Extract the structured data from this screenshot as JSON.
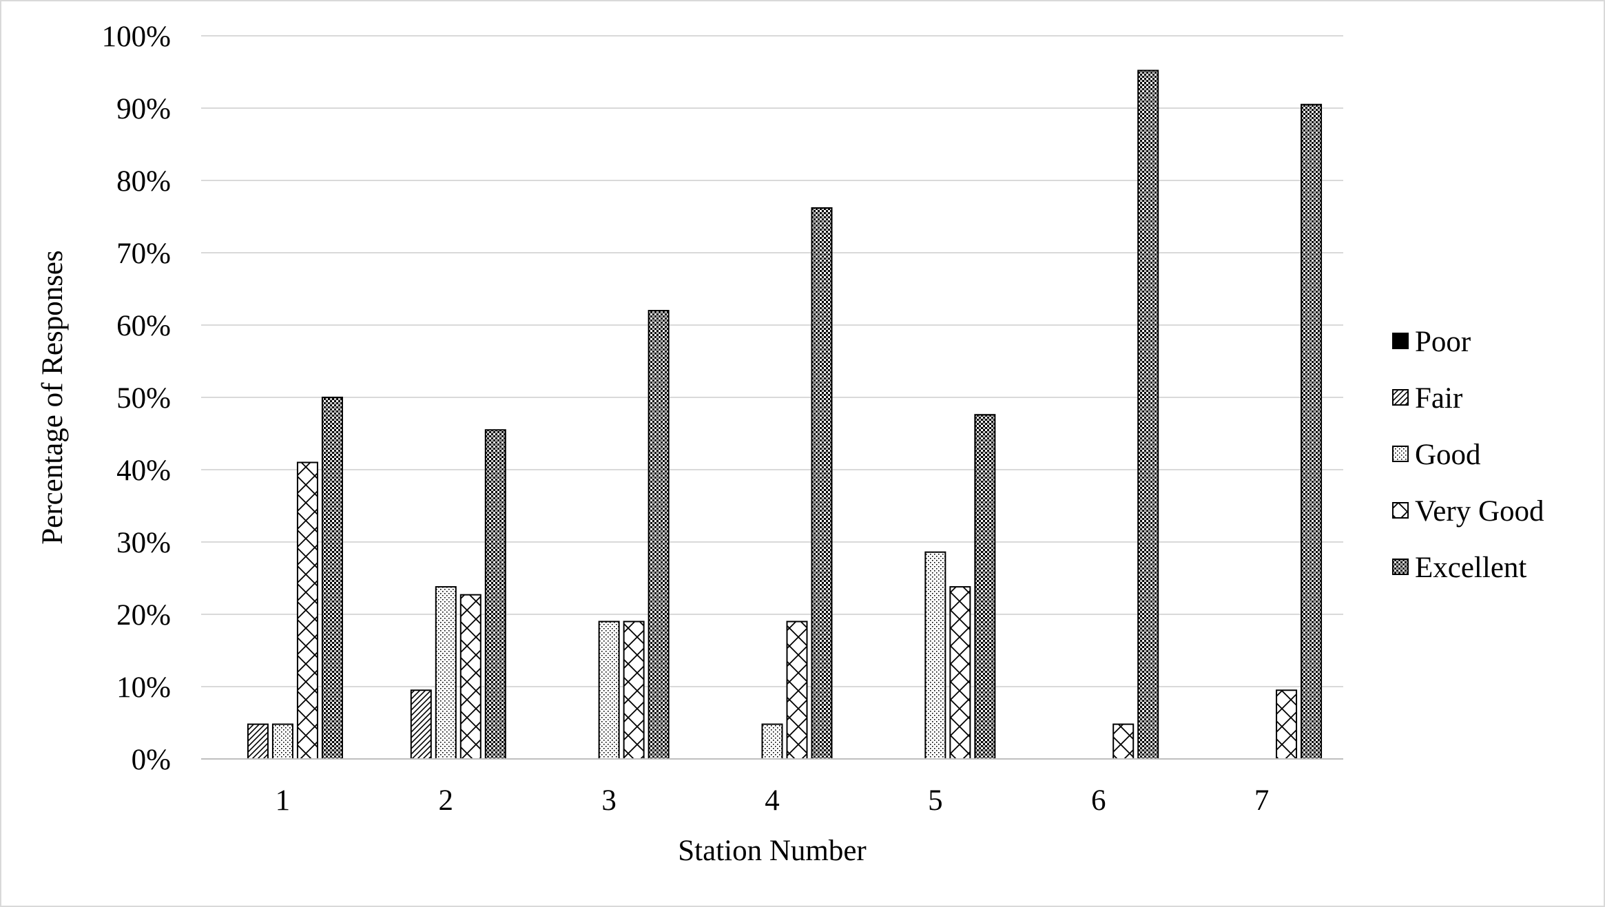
{
  "chart_data": {
    "type": "bar",
    "title": "",
    "xlabel": "Station Number",
    "ylabel": "Percentage of Responses",
    "ylim": [
      0,
      100
    ],
    "y_ticks": [
      "0%",
      "10%",
      "20%",
      "30%",
      "40%",
      "50%",
      "60%",
      "70%",
      "80%",
      "90%",
      "100%"
    ],
    "y_tick_values": [
      0,
      10,
      20,
      30,
      40,
      50,
      60,
      70,
      80,
      90,
      100
    ],
    "grid": true,
    "legend_position": "right",
    "categories": [
      "1",
      "2",
      "3",
      "4",
      "5",
      "6",
      "7"
    ],
    "series": [
      {
        "name": "Poor",
        "pattern": "solid",
        "values": [
          0,
          0,
          0,
          0,
          0,
          0,
          0
        ]
      },
      {
        "name": "Fair",
        "pattern": "diagonal",
        "values": [
          4.8,
          9.5,
          0,
          0,
          0,
          0,
          0
        ]
      },
      {
        "name": "Good",
        "pattern": "dots",
        "values": [
          4.8,
          23.8,
          19.0,
          4.8,
          28.6,
          0,
          0
        ]
      },
      {
        "name": "Very Good",
        "pattern": "crosshatch",
        "values": [
          41.0,
          22.7,
          19.0,
          19.0,
          23.8,
          4.8,
          9.5
        ]
      },
      {
        "name": "Excellent",
        "pattern": "dense-dots",
        "values": [
          50.0,
          45.5,
          62.0,
          76.2,
          47.6,
          95.2,
          90.5
        ]
      }
    ],
    "colors": {
      "bar_stroke": "#000000",
      "grid": "#d9d9d9",
      "axis": "#bfbfbf"
    }
  }
}
